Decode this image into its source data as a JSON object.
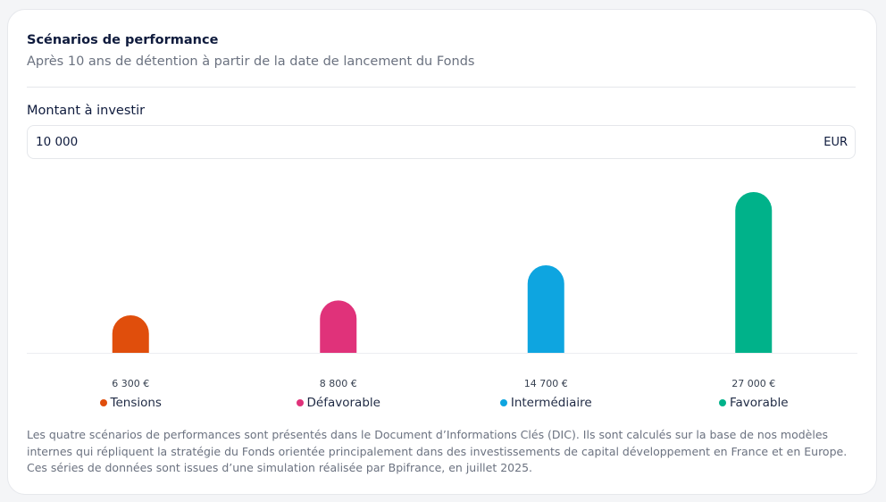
{
  "header": {
    "title": "Scénarios de performance",
    "subtitle": "Après 10 ans de détention à partir de la date de lancement du Fonds"
  },
  "amount": {
    "label": "Montant à investir",
    "value": "10000",
    "display_value": "10 000",
    "currency": "EUR"
  },
  "chart_data": {
    "type": "bar",
    "categories": [
      "Tensions",
      "Défavorable",
      "Intermédiaire",
      "Favorable"
    ],
    "values": [
      6300,
      8800,
      14700,
      27000
    ],
    "value_labels": [
      "6 300 €",
      "8 800 €",
      "14 700 €",
      "27 000 €"
    ],
    "colors": [
      "#e04e0c",
      "#e0327a",
      "#0ea5e0",
      "#00b28a"
    ],
    "title": "",
    "xlabel": "",
    "ylabel": "",
    "ylim": [
      0,
      27000
    ],
    "grid": false,
    "legend_position": "bottom"
  },
  "legend": [
    {
      "label": "Tensions",
      "color": "#e04e0c"
    },
    {
      "label": "Défavorable",
      "color": "#e0327a"
    },
    {
      "label": "Intermédiaire",
      "color": "#0ea5e0"
    },
    {
      "label": "Favorable",
      "color": "#00b28a"
    }
  ],
  "disclaimer": "Les quatre scénarios de performances sont présentés dans le Document d’Informations Clés (DIC). Ils sont calculés sur la base de nos modèles internes qui répliquent la stratégie du Fonds orientée principalement dans des investissements de capital développement en France et en Europe. Ces séries de données sont issues d’une simulation réalisée par Bpifrance, en juillet 2025."
}
